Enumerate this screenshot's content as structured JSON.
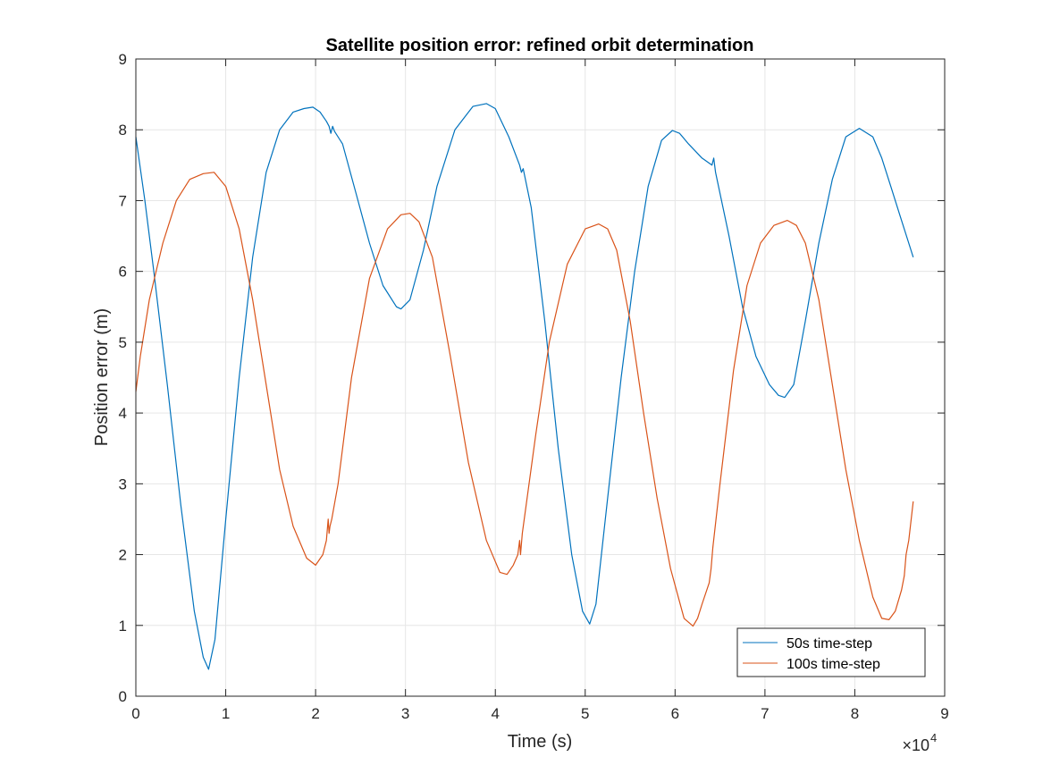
{
  "chart_data": {
    "type": "line",
    "title": "Satellite position error: refined orbit determination",
    "xlabel": "Time (s)",
    "ylabel": "Position  error (m)",
    "x_exponent_base": "×10",
    "x_exponent_power": "4",
    "xlim": [
      0,
      9
    ],
    "ylim": [
      0,
      9
    ],
    "x_scale_note": "x values in units of 10^4 s",
    "xticks": [
      "0",
      "1",
      "2",
      "3",
      "4",
      "5",
      "6",
      "7",
      "8",
      "9"
    ],
    "yticks": [
      "0",
      "1",
      "2",
      "3",
      "4",
      "5",
      "6",
      "7",
      "8",
      "9"
    ],
    "grid": true,
    "legend_position": "bottom-right",
    "series": [
      {
        "name": "50s time-step",
        "color": "#0072BD",
        "x": [
          0,
          0.1,
          0.2,
          0.35,
          0.5,
          0.65,
          0.75,
          0.81,
          0.88,
          1.0,
          1.15,
          1.3,
          1.45,
          1.6,
          1.75,
          1.87,
          1.97,
          2.05,
          2.12,
          2.15,
          2.17,
          2.19,
          2.21,
          2.3,
          2.45,
          2.6,
          2.75,
          2.9,
          2.95,
          3.05,
          3.2,
          3.35,
          3.55,
          3.75,
          3.9,
          4.0,
          4.15,
          4.27,
          4.29,
          4.31,
          4.4,
          4.55,
          4.7,
          4.85,
          4.97,
          5.05,
          5.12,
          5.25,
          5.4,
          5.55,
          5.7,
          5.85,
          5.97,
          6.05,
          6.15,
          6.3,
          6.41,
          6.43,
          6.45,
          6.6,
          6.75,
          6.9,
          7.05,
          7.15,
          7.22,
          7.32,
          7.45,
          7.6,
          7.75,
          7.9,
          8.05,
          8.2,
          8.3,
          8.4,
          8.5,
          8.65
        ],
        "y": [
          7.9,
          7.0,
          6.0,
          4.4,
          2.7,
          1.2,
          0.55,
          0.38,
          0.8,
          2.5,
          4.5,
          6.2,
          7.4,
          8.0,
          8.25,
          8.3,
          8.32,
          8.25,
          8.12,
          8.05,
          7.95,
          8.05,
          7.98,
          7.8,
          7.1,
          6.4,
          5.8,
          5.5,
          5.47,
          5.6,
          6.3,
          7.2,
          8.0,
          8.33,
          8.37,
          8.3,
          7.9,
          7.5,
          7.4,
          7.45,
          6.9,
          5.3,
          3.5,
          2.0,
          1.2,
          1.02,
          1.3,
          2.8,
          4.5,
          6.0,
          7.2,
          7.85,
          7.99,
          7.95,
          7.8,
          7.6,
          7.5,
          7.6,
          7.4,
          6.5,
          5.5,
          4.8,
          4.4,
          4.25,
          4.22,
          4.4,
          5.3,
          6.4,
          7.3,
          7.9,
          8.02,
          7.9,
          7.6,
          7.2,
          6.8,
          6.2
        ]
      },
      {
        "name": "100s time-step",
        "color": "#D95319",
        "x": [
          0,
          0.05,
          0.15,
          0.3,
          0.45,
          0.6,
          0.75,
          0.87,
          1.0,
          1.15,
          1.3,
          1.45,
          1.6,
          1.75,
          1.9,
          2.0,
          2.08,
          2.12,
          2.14,
          2.15,
          2.16,
          2.18,
          2.25,
          2.4,
          2.6,
          2.8,
          2.95,
          3.05,
          3.15,
          3.3,
          3.5,
          3.7,
          3.9,
          4.05,
          4.13,
          4.2,
          4.25,
          4.27,
          4.28,
          4.3,
          4.45,
          4.6,
          4.8,
          5.0,
          5.15,
          5.25,
          5.35,
          5.5,
          5.65,
          5.8,
          5.95,
          6.1,
          6.2,
          6.25,
          6.3,
          6.38,
          6.4,
          6.42,
          6.5,
          6.65,
          6.8,
          6.95,
          7.1,
          7.25,
          7.35,
          7.45,
          7.6,
          7.75,
          7.9,
          8.05,
          8.2,
          8.3,
          8.38,
          8.45,
          8.52,
          8.55,
          8.57,
          8.6,
          8.65
        ],
        "y": [
          4.3,
          4.8,
          5.6,
          6.4,
          7.0,
          7.3,
          7.38,
          7.4,
          7.2,
          6.6,
          5.6,
          4.4,
          3.2,
          2.4,
          1.95,
          1.85,
          2.0,
          2.2,
          2.5,
          2.3,
          2.4,
          2.5,
          3.0,
          4.5,
          5.9,
          6.6,
          6.8,
          6.82,
          6.7,
          6.2,
          4.8,
          3.3,
          2.2,
          1.75,
          1.72,
          1.85,
          2.0,
          2.2,
          2.0,
          2.3,
          3.7,
          5.0,
          6.1,
          6.6,
          6.67,
          6.6,
          6.3,
          5.3,
          4.0,
          2.8,
          1.8,
          1.1,
          0.99,
          1.1,
          1.3,
          1.6,
          1.8,
          2.1,
          3.0,
          4.6,
          5.8,
          6.4,
          6.65,
          6.72,
          6.65,
          6.4,
          5.6,
          4.4,
          3.2,
          2.2,
          1.4,
          1.1,
          1.08,
          1.2,
          1.5,
          1.7,
          2.0,
          2.2,
          2.75
        ]
      }
    ]
  }
}
